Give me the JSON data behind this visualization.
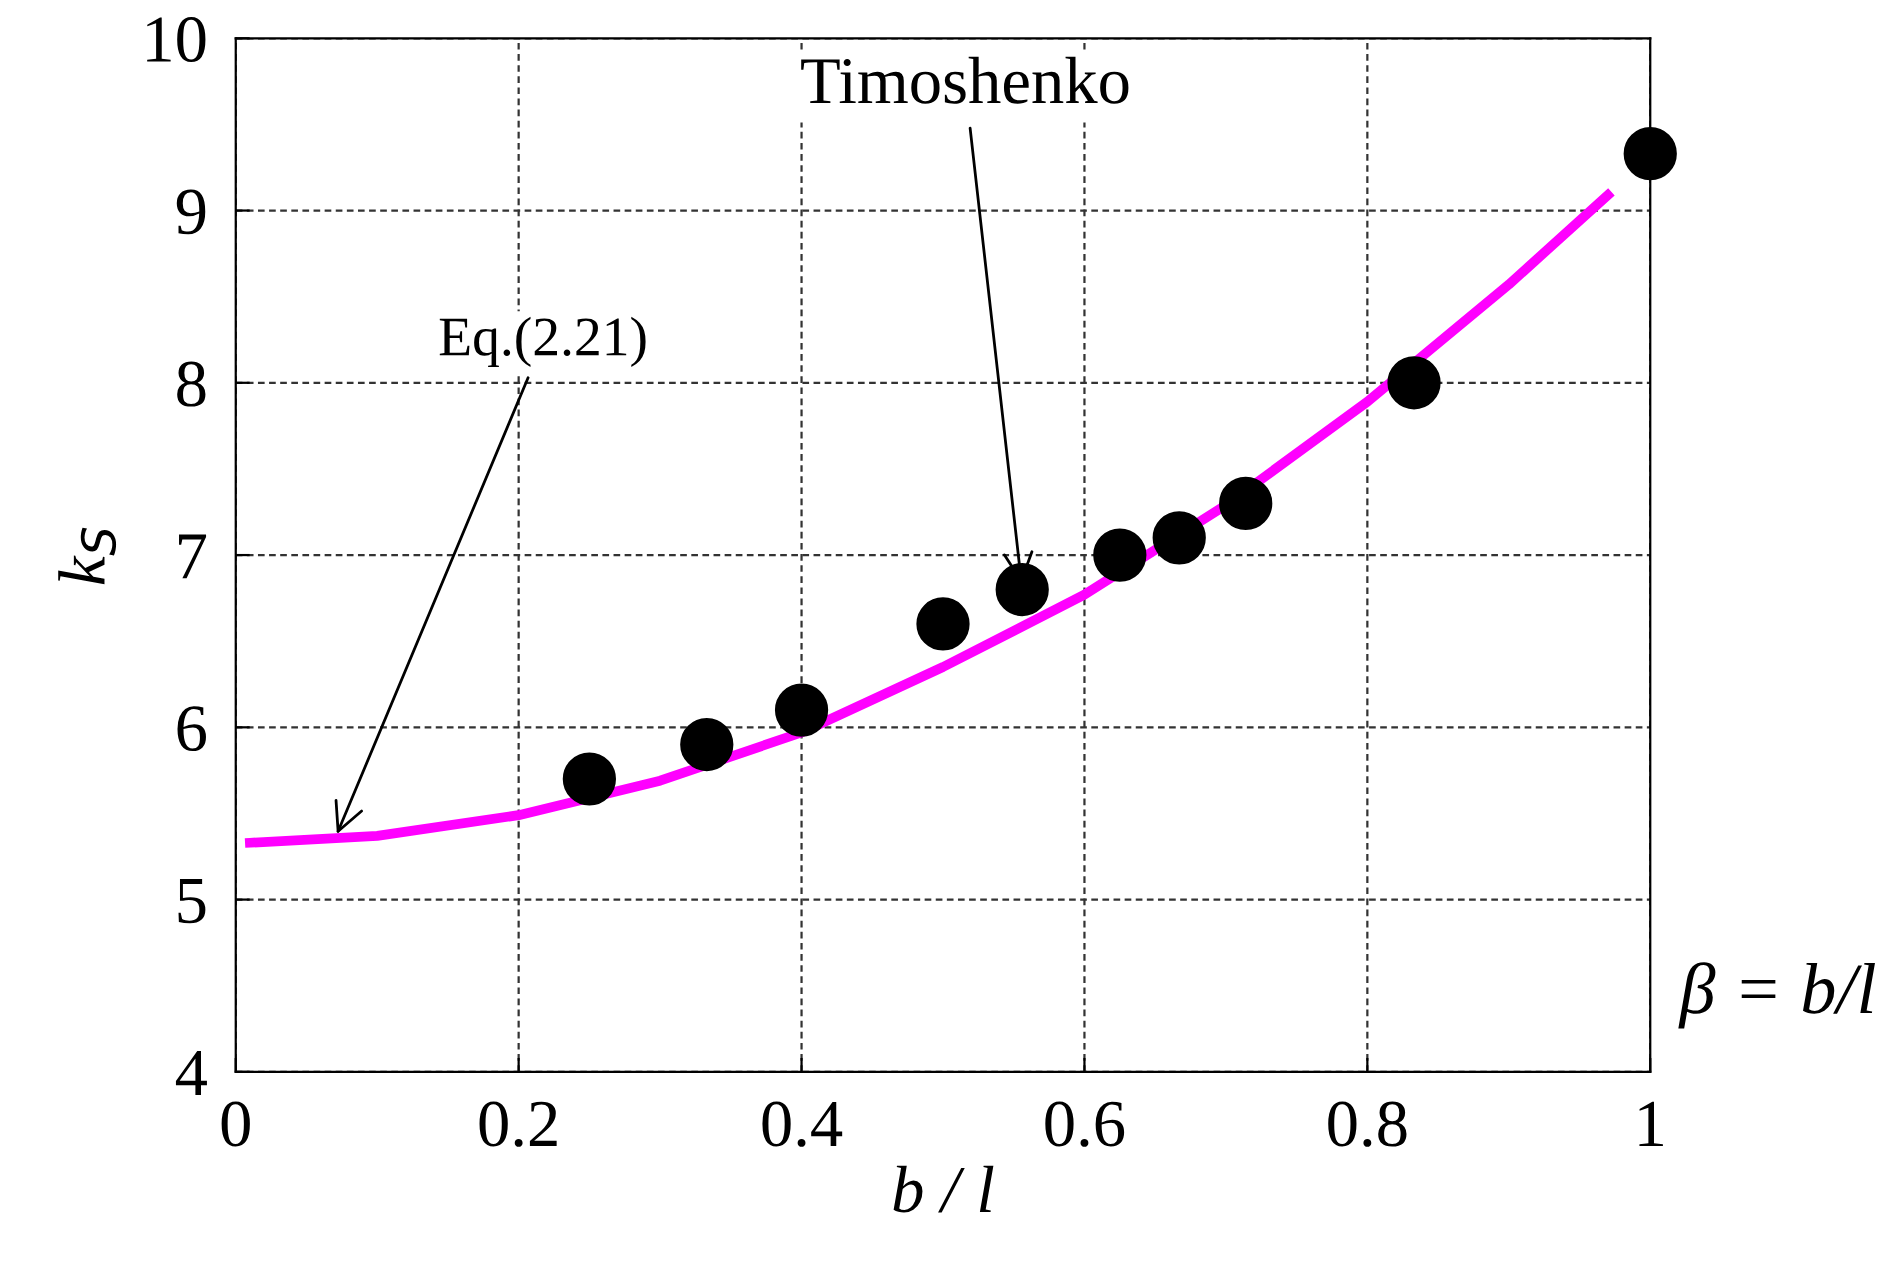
{
  "chart_data": {
    "type": "line",
    "xlabel": "b / l",
    "ylabel": "k$_{S}$",
    "xlim": [
      0,
      1
    ],
    "ylim": [
      4,
      10
    ],
    "xticks": [
      0,
      0.2,
      0.4,
      0.6,
      0.8,
      1
    ],
    "yticks": [
      4,
      5,
      6,
      7,
      8,
      9,
      10
    ],
    "grid": true,
    "series": [
      {
        "color": "#ff00ff",
        "marker": "none",
        "x": [
          0.01,
          0.1,
          0.2,
          0.3,
          0.4,
          0.5,
          0.6,
          0.7,
          0.8,
          0.9,
          0.97
        ],
        "values": [
          5.33,
          5.37,
          5.49,
          5.69,
          5.97,
          6.35,
          6.77,
          7.29,
          7.89,
          8.57,
          9.09
        ]
      },
      {
        "type": "scatter",
        "color": "#000000",
        "marker": "circle",
        "x": [
          0.25,
          0.333,
          0.4,
          0.5,
          0.556,
          0.625,
          0.667,
          0.714,
          0.833,
          1.0
        ],
        "values": [
          5.7,
          5.9,
          6.1,
          6.6,
          6.8,
          7.0,
          7.1,
          7.3,
          8.0,
          9.33
        ]
      }
    ],
    "annotations": [
      {
        "text": "Timoshenko",
        "x": 0.556,
        "y": 6.8
      },
      {
        "text": "Eq.(2.21)",
        "x": 0.07,
        "y": 5.35
      },
      "β = b/l"
    ]
  }
}
